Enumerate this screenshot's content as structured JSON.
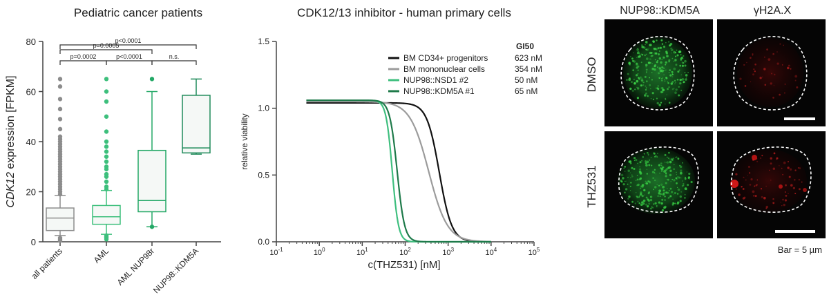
{
  "chart_data": [
    {
      "type": "box",
      "title": "Pediatric cancer patients",
      "ylabel_italic": "CDK12",
      "ylabel_rest": " expression [FPKM]",
      "ylim": [
        0,
        80
      ],
      "yticks": [
        0,
        20,
        40,
        60,
        80
      ],
      "categories": [
        "all patients",
        "AML",
        "AML NUP98r",
        "NUP98::KDM5A"
      ],
      "colors": [
        "#8c8c8c",
        "#3dbf7c",
        "#23a866",
        "#1f8a5a"
      ],
      "boxes": [
        {
          "q1": 4.5,
          "median": 9.5,
          "q3": 13.5,
          "whisker_low": 2.5,
          "whisker_high": 18.5
        },
        {
          "q1": 7,
          "median": 10,
          "q3": 14.5,
          "whisker_low": 3,
          "whisker_high": 20.5
        },
        {
          "q1": 12,
          "median": 16.5,
          "q3": 36.5,
          "whisker_low": 6,
          "whisker_high": 60
        },
        {
          "q1": 35.5,
          "median": 37.5,
          "q3": 58.5,
          "whisker_low": 35,
          "whisker_high": 65
        }
      ],
      "outliers": [
        [
          19,
          20,
          21,
          22,
          23,
          24,
          25,
          26,
          27,
          28,
          29,
          30,
          31,
          32,
          33,
          34,
          35,
          36,
          37,
          38,
          39,
          40,
          41,
          42,
          45,
          49,
          53,
          57,
          62,
          65,
          0.5,
          1,
          1.5
        ],
        [
          21,
          22,
          24,
          26,
          27,
          29,
          30,
          32,
          34,
          36,
          38,
          40,
          44,
          50,
          56,
          60,
          65,
          1,
          1.5,
          2,
          2.5
        ],
        [
          65,
          6
        ],
        []
      ],
      "comparisons": [
        {
          "from": 0,
          "to": 3,
          "label": "p<0.0001"
        },
        {
          "from": 0,
          "to": 2,
          "label": "p=0.0005"
        },
        {
          "from": 0,
          "to": 1,
          "label": "p=0.0002"
        },
        {
          "from": 1,
          "to": 2,
          "label": "p<0.0001"
        },
        {
          "from": 2,
          "to": 3,
          "label": "n.s."
        }
      ]
    },
    {
      "type": "line",
      "title": "CDK12/13 inhibitor - human primary cells",
      "xlabel": "c(THZ531) [nM]",
      "ylabel": "relative viability",
      "xscale": "log",
      "xlim": [
        0.1,
        100000
      ],
      "ylim": [
        0,
        1.5
      ],
      "yticks": [
        "0.0",
        "0.5",
        "1.0",
        "1.5"
      ],
      "xtick_mantissa": "10",
      "xtick_exponents": [
        "-1",
        "0",
        "1",
        "2",
        "3",
        "4",
        "5"
      ],
      "gi50_header": "GI50",
      "series": [
        {
          "name": "BM CD34+ progenitors",
          "gi50": "623 nM",
          "ic50": 623,
          "top": 1.04,
          "hill": 3.0,
          "color": "#111111"
        },
        {
          "name": "BM mononuclear cells",
          "gi50": "354 nM",
          "ic50": 354,
          "top": 1.05,
          "hill": 2.0,
          "color": "#9b9b9b"
        },
        {
          "name": "NUP98::NSD1 #2",
          "gi50": "50 nM",
          "ic50": 50,
          "top": 1.06,
          "hill": 6.0,
          "color": "#3fbf7f"
        },
        {
          "name": "NUP98::KDM5A #1",
          "gi50": "65 nM",
          "ic50": 65,
          "top": 1.06,
          "hill": 5.0,
          "color": "#1e7a4a"
        }
      ]
    }
  ],
  "microscopy": {
    "col_labels": [
      "NUP98::KDM5A",
      "γH2A.X"
    ],
    "row_labels": [
      "DMSO",
      "THZ531"
    ],
    "scale_bar": "Bar = 5 µm"
  }
}
